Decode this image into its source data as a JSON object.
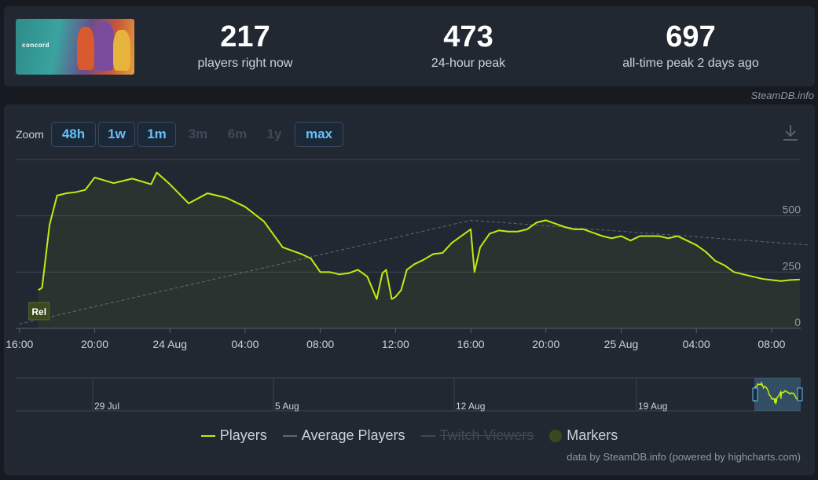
{
  "stats": [
    {
      "value": "217",
      "label": "players right now"
    },
    {
      "value": "473",
      "label": "24-hour peak"
    },
    {
      "value": "697",
      "label": "all-time peak 2 days ago"
    }
  ],
  "capsule": {
    "word": "concord"
  },
  "credit_top": "SteamDB.info",
  "zoom": {
    "label": "Zoom",
    "buttons": [
      {
        "label": "48h",
        "enabled": true
      },
      {
        "label": "1w",
        "enabled": true
      },
      {
        "label": "1m",
        "enabled": true
      },
      {
        "label": "3m",
        "enabled": false
      },
      {
        "label": "6m",
        "enabled": false
      },
      {
        "label": "1y",
        "enabled": false
      },
      {
        "label": "max",
        "enabled": true
      }
    ]
  },
  "icons": {
    "download": "download-icon"
  },
  "colors": {
    "players": "#beee11",
    "average": "#666666",
    "markers": "#3a4a1e"
  },
  "chart_data": {
    "type": "line",
    "title": "",
    "xlabel": "",
    "ylabel": "",
    "ylim": [
      0,
      750
    ],
    "y_ticks": [
      0,
      250,
      500
    ],
    "x_tick_labels": [
      "16:00",
      "20:00",
      "24 Aug",
      "04:00",
      "08:00",
      "12:00",
      "16:00",
      "20:00",
      "25 Aug",
      "04:00",
      "08:00"
    ],
    "x_tick_hours": [
      16,
      20,
      24,
      28,
      32,
      36,
      40,
      44,
      48,
      52,
      56
    ],
    "marker": {
      "label": "Rel",
      "hour": 17
    },
    "series": [
      {
        "name": "Players",
        "color": "#beee11",
        "x_hours": [
          17,
          17.2,
          17.6,
          18,
          18.5,
          19,
          19.5,
          20,
          21,
          22,
          23,
          23.3,
          24,
          25,
          26,
          27,
          28,
          29,
          30,
          31,
          31.5,
          32,
          32.5,
          33,
          33.5,
          34,
          34.5,
          35,
          35.3,
          35.5,
          35.8,
          36,
          36.3,
          36.6,
          37,
          37.5,
          38,
          38.5,
          39,
          39.5,
          40,
          40.2,
          40.5,
          41,
          41.5,
          42,
          42.5,
          43,
          43.5,
          44,
          44.5,
          45,
          45.5,
          46,
          46.5,
          47,
          47.5,
          48,
          48.5,
          49,
          49.5,
          50,
          50.5,
          51,
          51.5,
          52,
          52.5,
          53,
          53.5,
          54,
          54.5,
          55,
          55.5,
          56,
          56.5,
          57,
          57.5
        ],
        "values": [
          170,
          180,
          460,
          590,
          600,
          605,
          615,
          670,
          645,
          665,
          640,
          692,
          640,
          555,
          600,
          580,
          540,
          475,
          360,
          330,
          310,
          250,
          250,
          240,
          245,
          260,
          230,
          130,
          245,
          260,
          130,
          140,
          170,
          260,
          285,
          305,
          330,
          335,
          380,
          410,
          440,
          250,
          360,
          420,
          435,
          430,
          430,
          440,
          470,
          480,
          465,
          450,
          440,
          440,
          425,
          410,
          400,
          410,
          390,
          410,
          410,
          410,
          400,
          410,
          390,
          370,
          340,
          300,
          280,
          250,
          240,
          230,
          220,
          215,
          210,
          215,
          217
        ]
      },
      {
        "name": "Average Players",
        "color": "#666666",
        "x_hours": [
          16,
          40,
          58
        ],
        "values": [
          20,
          480,
          370
        ]
      },
      {
        "name": "Twitch Viewers",
        "color": "#6441a5",
        "x_hours": [],
        "values": []
      }
    ],
    "navigator": {
      "tick_labels": [
        "29 Jul",
        "5 Aug",
        "12 Aug",
        "19 Aug"
      ]
    },
    "legend": [
      {
        "label": "Players",
        "kind": "line",
        "color": "#beee11",
        "hidden": false
      },
      {
        "label": "Average Players",
        "kind": "line",
        "color": "#666666",
        "hidden": false
      },
      {
        "label": "Twitch Viewers",
        "kind": "line",
        "color": "#6441a5",
        "hidden": true
      },
      {
        "label": "Markers",
        "kind": "dot",
        "color": "#3a4a1e",
        "hidden": false
      }
    ],
    "grid": true,
    "legend_position": "bottom"
  },
  "credit_bottom": "data by SteamDB.info (powered by highcharts.com)"
}
